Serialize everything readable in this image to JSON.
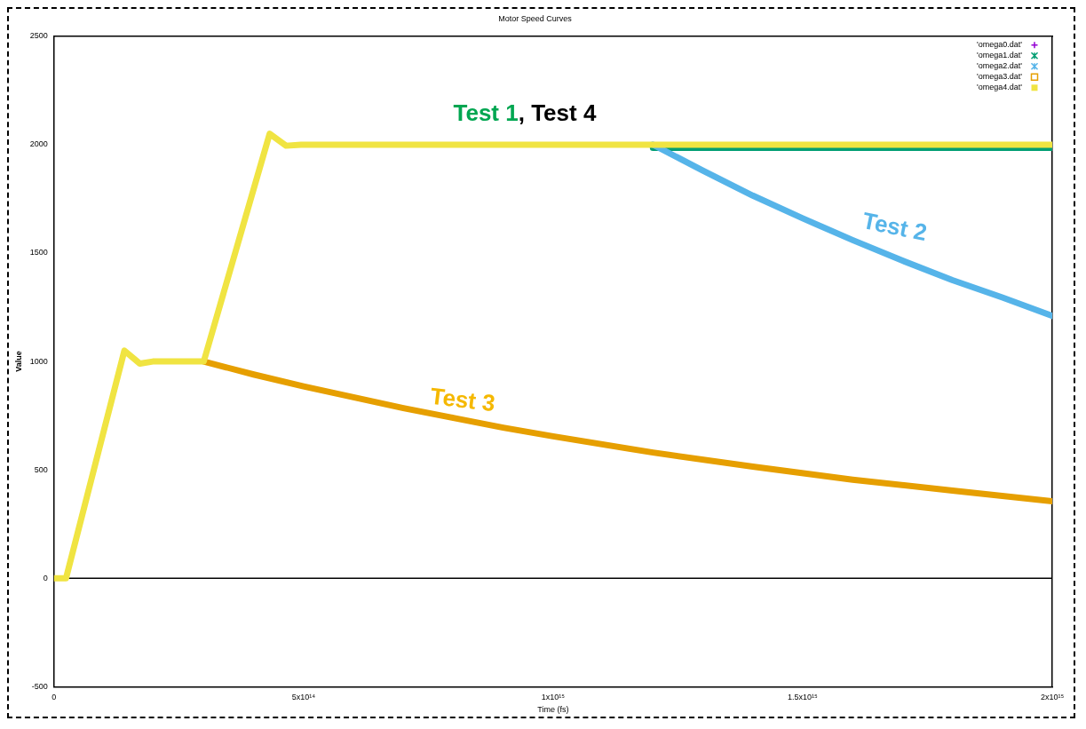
{
  "chart_data": {
    "type": "line",
    "title": "Motor Speed Curves",
    "xlabel": "Time (fs)",
    "ylabel": "Value",
    "xlim": [
      0,
      2000000000000000.0
    ],
    "xticks": [
      0,
      {
        "value": 500000000000000.0,
        "label": "5x10¹⁴"
      },
      {
        "value": 1000000000000000.0,
        "label": "1x10¹⁵"
      },
      {
        "value": 1500000000000000.0,
        "label": "1.5x10¹⁵"
      },
      {
        "value": 2000000000000000.0,
        "label": "2x10¹⁵"
      }
    ],
    "ylim": [
      -500,
      2500
    ],
    "yticks": [
      -500,
      0,
      500,
      1000,
      1500,
      2000,
      2500
    ],
    "legend": "top right",
    "ref_lines": [
      {
        "axis": "y",
        "value": 0,
        "color": "#000000"
      }
    ],
    "annotations": [
      "Test 1, Test 4",
      "Test 2",
      "Test 3"
    ],
    "series": [
      {
        "name": "'omega0.dat'",
        "color": "#9400d3"
      },
      {
        "name": "'omega1.dat'",
        "color": "#009e73",
        "x": [
          1200000000000000.0,
          2000000000000000.0
        ],
        "values": [
          1985,
          1985
        ]
      },
      {
        "name": "'omega2.dat'",
        "color": "#56b4e9",
        "x": [
          1200000000000000.0,
          1300000000000000.0,
          1400000000000000.0,
          1500000000000000.0,
          1600000000000000.0,
          1700000000000000.0,
          1800000000000000.0,
          1900000000000000.0,
          2000000000000000.0
        ],
        "values": [
          2000,
          1880,
          1765,
          1660,
          1560,
          1465,
          1375,
          1295,
          1210
        ]
      },
      {
        "name": "'omega3.dat'",
        "color": "#e69f00",
        "x": [
          300000000000000.0,
          400000000000000.0,
          500000000000000.0,
          600000000000000.0,
          700000000000000.0,
          800000000000000.0,
          900000000000000.0,
          1000000000000000.0,
          1200000000000000.0,
          1400000000000000.0,
          1600000000000000.0,
          1800000000000000.0,
          2000000000000000.0
        ],
        "values": [
          1000,
          940,
          885,
          835,
          785,
          740,
          695,
          655,
          580,
          515,
          455,
          405,
          355
        ]
      },
      {
        "name": "'omega4.dat'",
        "color": "#f0e442",
        "x": [
          0,
          24000000000000.0,
          141000000000000.0,
          172000000000000.0,
          198000000000000.0,
          300000000000000.0,
          432000000000000.0,
          465000000000000.0,
          495000000000000.0,
          2000000000000000.0
        ],
        "values": [
          0,
          0,
          1050,
          990,
          1000,
          1000,
          2050,
          1995,
          2000,
          2000
        ]
      }
    ]
  }
}
